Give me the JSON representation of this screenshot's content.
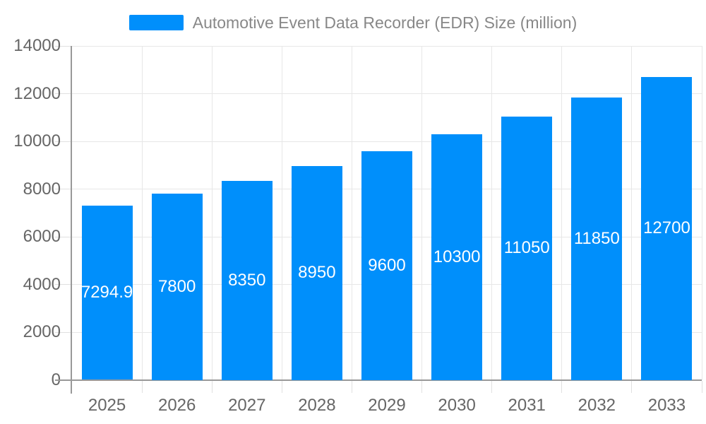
{
  "chart_data": {
    "type": "bar",
    "title": "Automotive Event Data Recorder (EDR) Size (million)",
    "legend": {
      "label": "Automotive Event Data Recorder (EDR) Size (million)",
      "position": "top"
    },
    "categories": [
      "2025",
      "2026",
      "2027",
      "2028",
      "2029",
      "2030",
      "2031",
      "2032",
      "2033"
    ],
    "series": [
      {
        "name": "Automotive Event Data Recorder (EDR) Size (million)",
        "values": [
          7294.9,
          7800,
          8350,
          8950,
          9600,
          10300,
          11050,
          11850,
          12700
        ]
      }
    ],
    "bar_labels": [
      "7294.9",
      "7800",
      "8350",
      "8950",
      "9600",
      "10300",
      "11050",
      "11850",
      "12700"
    ],
    "xlabel": "",
    "ylabel": "",
    "ylim": [
      0,
      14000
    ],
    "yticks": [
      0,
      2000,
      4000,
      6000,
      8000,
      10000,
      12000,
      14000
    ],
    "ytick_labels": [
      "0",
      "2000",
      "4000",
      "6000",
      "8000",
      "10000",
      "12000",
      "14000"
    ],
    "grid": true,
    "colors": {
      "bar": "#008FFB",
      "data_label": "#FFFFFF",
      "axis_label": "#666666",
      "legend_text": "#888888",
      "grid_line": "#E7E7E7",
      "tick_line": "#E0E0E0",
      "axis_line": "#999999",
      "background": "#FFFFFF"
    }
  }
}
